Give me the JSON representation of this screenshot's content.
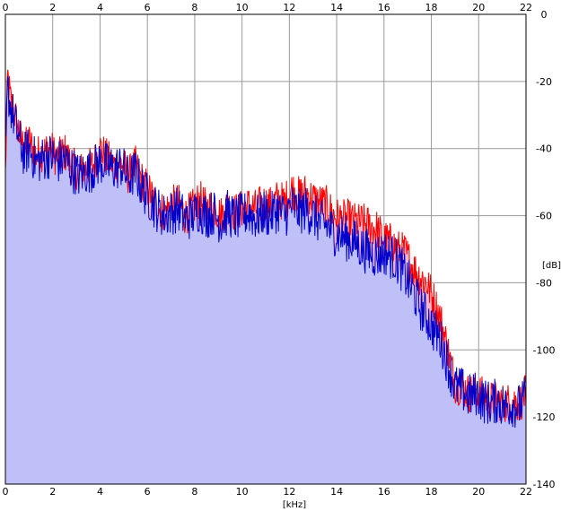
{
  "chart_data": {
    "type": "line",
    "title": "",
    "xlabel": "[kHz]",
    "ylabel": "[dB]",
    "xlim": [
      0,
      22
    ],
    "ylim": [
      -140,
      0
    ],
    "grid": true,
    "x_ticks": [
      "0",
      "2",
      "4",
      "6",
      "8",
      "10",
      "12",
      "14",
      "16",
      "18",
      "20",
      "22"
    ],
    "y_ticks": [
      "0",
      "-20",
      "-40",
      "-60",
      "-80",
      "-100",
      "-120",
      "-140"
    ],
    "colors": {
      "series_a": "#ff0000",
      "series_b": "#0000cc",
      "fill_a": "#f5b5cc",
      "fill_b": "#c0c0f8",
      "grid": "#9a9a9a",
      "frame": "#000000"
    },
    "series": [
      {
        "color": "#ff0000",
        "x": [
          0,
          0.1,
          0.2,
          0.4,
          0.6,
          0.8,
          1.0,
          1.3,
          1.6,
          1.9,
          2.2,
          2.5,
          2.8,
          3.1,
          3.4,
          3.7,
          4.0,
          4.3,
          4.6,
          4.9,
          5.2,
          5.5,
          5.8,
          6.1,
          6.4,
          6.7,
          7.0,
          7.3,
          7.6,
          7.9,
          8.2,
          8.5,
          8.8,
          9.1,
          9.4,
          9.7,
          10.0,
          10.3,
          10.6,
          10.9,
          11.2,
          11.5,
          11.8,
          12.1,
          12.4,
          12.7,
          13.0,
          13.3,
          13.6,
          13.9,
          14.2,
          14.5,
          14.8,
          15.1,
          15.4,
          15.7,
          16.0,
          16.3,
          16.6,
          16.9,
          17.2,
          17.5,
          17.8,
          18.1,
          18.4,
          18.7,
          19.0,
          19.3,
          19.6,
          19.9,
          20.2,
          20.5,
          20.8,
          21.1,
          21.4,
          21.7,
          22.0
        ],
        "values": [
          -48,
          -18,
          -25,
          -30,
          -36,
          -40,
          -38,
          -42,
          -41,
          -40,
          -43,
          -41,
          -45,
          -47,
          -46,
          -45,
          -40,
          -43,
          -45,
          -44,
          -48,
          -45,
          -50,
          -53,
          -57,
          -59,
          -57,
          -56,
          -60,
          -58,
          -55,
          -58,
          -57,
          -60,
          -57,
          -59,
          -58,
          -57,
          -58,
          -56,
          -57,
          -55,
          -56,
          -52,
          -54,
          -53,
          -55,
          -56,
          -57,
          -60,
          -61,
          -61,
          -62,
          -62,
          -63,
          -64,
          -67,
          -68,
          -70,
          -71,
          -75,
          -78,
          -80,
          -85,
          -91,
          -100,
          -110,
          -111,
          -113,
          -112,
          -114,
          -115,
          -115,
          -116,
          -115,
          -116,
          -113
        ]
      },
      {
        "color": "#0000cc",
        "x": [
          0,
          0.1,
          0.2,
          0.4,
          0.6,
          0.8,
          1.0,
          1.3,
          1.6,
          1.9,
          2.2,
          2.5,
          2.8,
          3.1,
          3.4,
          3.7,
          4.0,
          4.3,
          4.6,
          4.9,
          5.2,
          5.5,
          5.8,
          6.1,
          6.4,
          6.7,
          7.0,
          7.3,
          7.6,
          7.9,
          8.2,
          8.5,
          8.8,
          9.1,
          9.4,
          9.7,
          10.0,
          10.3,
          10.6,
          10.9,
          11.2,
          11.5,
          11.8,
          12.1,
          12.4,
          12.7,
          13.0,
          13.3,
          13.6,
          13.9,
          14.2,
          14.5,
          14.8,
          15.1,
          15.4,
          15.7,
          16.0,
          16.3,
          16.6,
          16.9,
          17.2,
          17.5,
          17.8,
          18.1,
          18.4,
          18.7,
          19.0,
          19.3,
          19.6,
          19.9,
          20.2,
          20.5,
          20.8,
          21.1,
          21.4,
          21.7,
          22.0
        ],
        "values": [
          -42,
          -22,
          -27,
          -32,
          -38,
          -42,
          -40,
          -44,
          -43,
          -42,
          -44,
          -43,
          -46,
          -48,
          -47,
          -46,
          -44,
          -45,
          -46,
          -45,
          -49,
          -47,
          -52,
          -55,
          -58,
          -60,
          -59,
          -58,
          -61,
          -60,
          -58,
          -60,
          -59,
          -62,
          -59,
          -61,
          -60,
          -59,
          -61,
          -59,
          -60,
          -58,
          -60,
          -57,
          -59,
          -58,
          -60,
          -62,
          -63,
          -65,
          -66,
          -67,
          -68,
          -70,
          -71,
          -72,
          -71,
          -72,
          -74,
          -78,
          -82,
          -87,
          -90,
          -94,
          -97,
          -104,
          -111,
          -112,
          -114,
          -113,
          -115,
          -116,
          -115,
          -117,
          -116,
          -117,
          -114
        ]
      }
    ]
  }
}
